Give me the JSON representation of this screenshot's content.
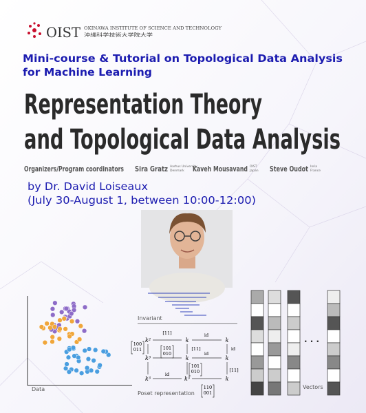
{
  "header": {
    "logo": "OIST",
    "institute": "OKINAWA INSTITUTE OF SCIENCE AND TECHNOLOGY",
    "institute_ja": "沖縄科学技術大学院大学"
  },
  "subtitle_lines": [
    "Mini-course & Tutorial on Topological Data Analysis",
    "for Machine Learning"
  ],
  "title_lines": [
    "Representation Theory",
    "and Topological Data Analysis"
  ],
  "organizers": {
    "label": "Organizers/Program coordinators",
    "people": [
      {
        "name": "Sira Gratz",
        "affiliation": [
          "Aarhus University",
          "Denmark"
        ]
      },
      {
        "name": "Kaveh Mousavand",
        "affiliation": [
          "OIST",
          "Japan"
        ]
      },
      {
        "name": "Steve Oudot",
        "affiliation": [
          "Inria",
          "France"
        ]
      }
    ]
  },
  "speaker": "by Dr. David Loiseaux",
  "schedule": "(July 30-August 1, between 10:00-12:00)",
  "figure": {
    "data_label": "Data",
    "invariant_label": "Invariant",
    "poset_label": "Poset representation",
    "vectors_label": "Vectors",
    "ellipsis": "· · ·",
    "nodes": [
      "k²",
      "k",
      "k",
      "k³",
      "k",
      "k",
      "k³",
      "k³",
      "k"
    ],
    "arrow_labels": [
      "[11]",
      "id",
      "[11]",
      "id",
      "id",
      "id",
      "[11]"
    ],
    "matrices": [
      {
        "rows": [
          "100",
          "011"
        ]
      },
      {
        "rows": [
          "101",
          "010"
        ]
      },
      {
        "rows": [
          "101",
          "010"
        ]
      },
      {
        "rows": [
          "110",
          "001"
        ]
      }
    ]
  }
}
